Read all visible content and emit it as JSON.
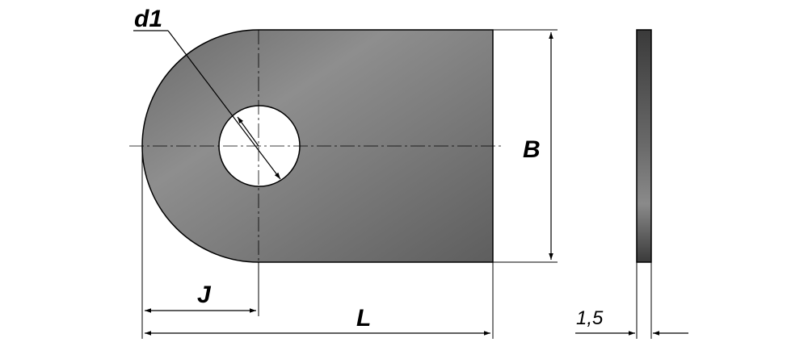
{
  "labels": {
    "d1": "d1",
    "B": "B",
    "J": "J",
    "L": "L",
    "thickness": "1,5"
  },
  "colors": {
    "plate_light": "#8a8a8a",
    "plate_dark": "#5a5a5a",
    "edge": "#000000",
    "line": "#000000",
    "hole": "#ffffff"
  }
}
